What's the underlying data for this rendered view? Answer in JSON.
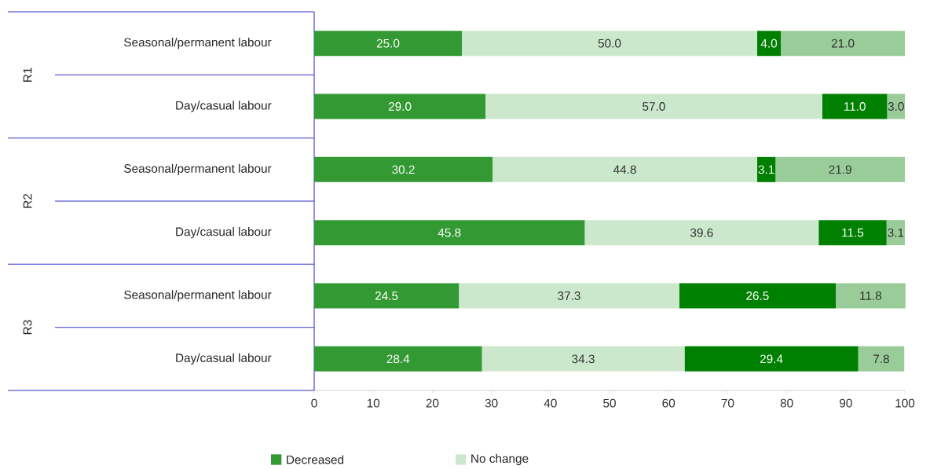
{
  "chart_data": {
    "type": "bar",
    "orientation": "horizontal",
    "stacked": true,
    "categories": [
      "Seasonal/permanent labour",
      "Day/casual labour",
      "Seasonal/permanent labour",
      "Day/casual labour",
      "Seasonal/permanent labour",
      "Day/casual labour"
    ],
    "series": [
      {
        "name": "Decreased",
        "color": "#339933",
        "values": [
          25.0,
          29.0,
          30.2,
          45.8,
          24.5,
          28.4
        ],
        "value_labels": [
          "25.0",
          "29.0",
          "30.2",
          "45.8",
          "24.5",
          "28.4"
        ]
      },
      {
        "name": "No change",
        "color": "#cce8cc",
        "values": [
          50.0,
          57.0,
          44.8,
          39.6,
          37.3,
          34.3
        ],
        "value_labels": [
          "50.0",
          "57.0",
          "44.8",
          "39.6",
          "37.3",
          "34.3"
        ]
      },
      {
        "color": "#008000",
        "values": [
          4.0,
          11.0,
          3.1,
          11.5,
          26.5,
          29.4
        ],
        "value_labels": [
          "4.0",
          "11.0",
          "3.1",
          "11.5",
          "26.5",
          "29.4"
        ]
      },
      {
        "color": "#99cc99",
        "values": [
          21.0,
          3.0,
          21.9,
          3.1,
          11.8,
          7.8
        ],
        "value_labels": [
          "21.0",
          "3.0",
          "21.9",
          "3.1",
          "11.8",
          "7.8"
        ]
      }
    ],
    "xlim": [
      0,
      100
    ],
    "xticks": [
      0,
      10,
      20,
      30,
      40,
      50,
      60,
      70,
      80,
      90,
      100
    ],
    "annotations": [
      "R1",
      "R2",
      "R3"
    ],
    "legend": "bottom",
    "grid": false
  }
}
